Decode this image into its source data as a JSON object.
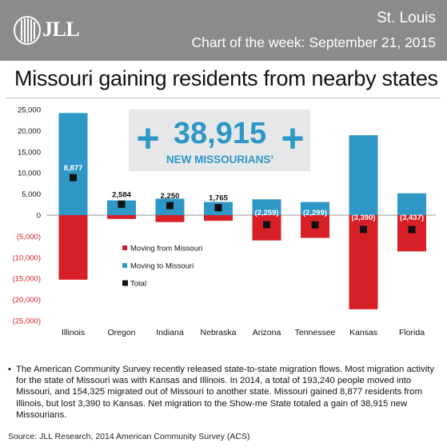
{
  "header": {
    "logo_text": "JLL",
    "city": "St. Louis",
    "week": "Chart of the week: September 21, 2015"
  },
  "headline": "Missouri gaining residents from nearby states",
  "callout": {
    "number": "38,915",
    "label": "NEW MISSOURIANS’",
    "plus_symbol": "+"
  },
  "colors": {
    "moving_from": "#d71f27",
    "moving_to": "#2f97c6",
    "total": "#111111",
    "callout_bg": "#e6e7e8",
    "callout_fg": "#2f97c6",
    "header_bg": "#8b8b8b"
  },
  "chart_data": {
    "type": "bar",
    "title": "",
    "xlabel": "",
    "ylabel": "",
    "ylim": [
      -25000,
      25000
    ],
    "ytick_values": [
      25000,
      20000,
      15000,
      10000,
      5000,
      0,
      -5000,
      -10000,
      -15000,
      -20000,
      -25000
    ],
    "ytick_labels": [
      "25,000",
      "20,000",
      "15,000",
      "10,000",
      "5,000",
      "0",
      "(5,000)",
      "(10,000)",
      "(15,000)",
      "(20,000)",
      "(25,000)"
    ],
    "categories": [
      "Illinois",
      "Oregon",
      "Indiana",
      "Nebraska",
      "Arizona",
      "Tennessee",
      "Kansas",
      "Florida"
    ],
    "series": [
      {
        "name": "Moving from Missouri",
        "values": [
          -15300,
          -900,
          -1650,
          -1350,
          -6000,
          -5400,
          -22300,
          -8600
        ]
      },
      {
        "name": "Moving to Missouri",
        "values": [
          24177,
          3484,
          3900,
          3115,
          3741,
          3101,
          18910,
          5163
        ]
      },
      {
        "name": "Total",
        "values": [
          8877,
          2584,
          2250,
          1765,
          -2259,
          -2299,
          -3390,
          -3437
        ]
      }
    ],
    "total_labels": [
      "8,877",
      "2,584",
      "2,250",
      "1,765",
      "(2,259)",
      "(2,299)",
      "(3,390)",
      "(3,437)"
    ],
    "legend": {
      "position": "center-left",
      "entries": [
        "Moving from Missouri",
        "Moving to Missouri",
        "Total"
      ]
    }
  },
  "note": {
    "bullet": "•",
    "text": "The American Community Survey recently released state-to-state migration flows. Most migration activity for the state of Missouri was with Kansas and Illinois. In 2014, a total of 193,240 people moved into Missouri, and 154,325 migrated out of Missouri to another state. Missouri gained 8,877 residents from Illinois, but lost 3,390 to Kansas. Net migration to the Show-me State totaled a gain of 38,915 new Missourians."
  },
  "source": "Source: JLL Research, 2014 American Community Survey (ACS)"
}
